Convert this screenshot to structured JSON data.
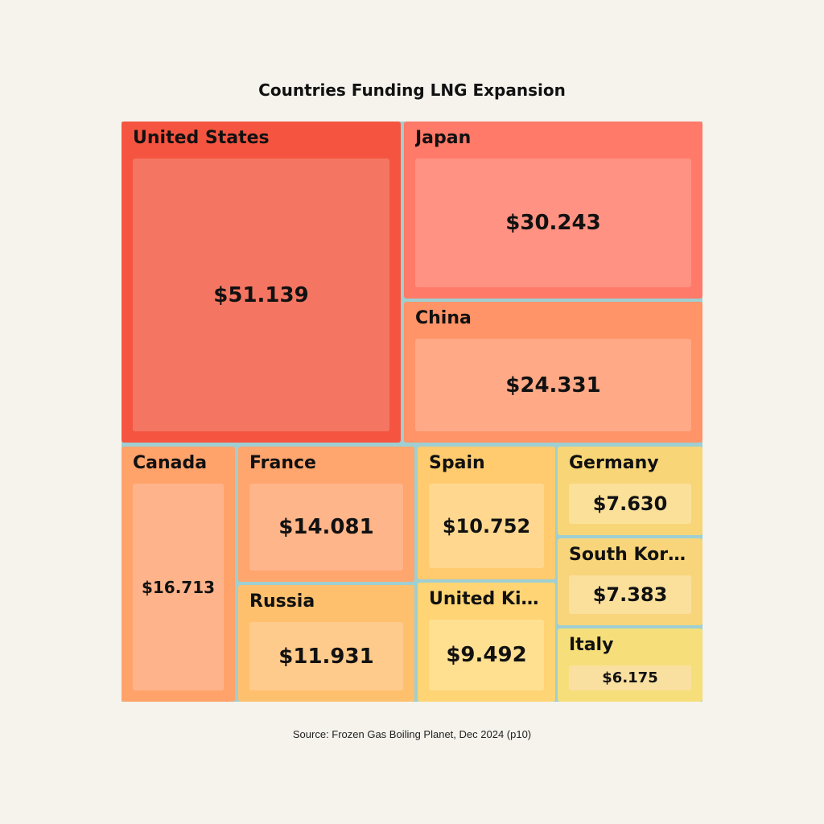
{
  "chart_data": {
    "type": "treemap",
    "title": "Countries Funding LNG Expansion",
    "source": "Source: Frozen Gas Boiling Planet, Dec 2024 (p10)",
    "items": [
      {
        "label": "United States",
        "value": 51.139,
        "value_label": "$51.139",
        "color": "#f55540",
        "inner_color": "#f47662"
      },
      {
        "label": "Japan",
        "value": 30.243,
        "value_label": "$30.243",
        "color": "#ff7a68",
        "inner_color": "#ff9282"
      },
      {
        "label": "China",
        "value": 24.331,
        "value_label": "$24.331",
        "color": "#ff9468",
        "inner_color": "#ffa987"
      },
      {
        "label": "Canada",
        "value": 16.713,
        "value_label": "$16.713",
        "color": "#ffa36b",
        "inner_color": "#ffb38a"
      },
      {
        "label": "France",
        "value": 14.081,
        "value_label": "$14.081",
        "color": "#ffa56e",
        "inner_color": "#ffb58a"
      },
      {
        "label": "Russia",
        "value": 11.931,
        "value_label": "$11.931",
        "color": "#ffc06e",
        "inner_color": "#ffcb8c"
      },
      {
        "label": "Spain",
        "value": 10.752,
        "value_label": "$10.752",
        "color": "#ffcb6e",
        "inner_color": "#ffd78f"
      },
      {
        "label": "United Ki…",
        "value": 9.492,
        "value_label": "$9.492",
        "color": "#ffd474",
        "inner_color": "#ffe090"
      },
      {
        "label": "Germany",
        "value": 7.63,
        "value_label": "$7.630",
        "color": "#f8d677",
        "inner_color": "#fbe09a"
      },
      {
        "label": "South Kor…",
        "value": 7.383,
        "value_label": "$7.383",
        "color": "#f8d57a",
        "inner_color": "#fbe09c"
      },
      {
        "label": "Italy",
        "value": 6.175,
        "value_label": "$6.175",
        "color": "#f6df7a",
        "inner_color": "#f9e0a0"
      }
    ]
  }
}
